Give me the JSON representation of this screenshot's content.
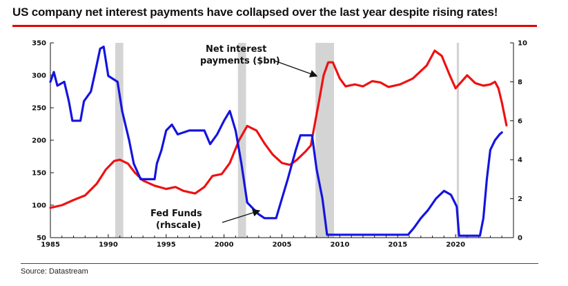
{
  "header": {
    "title": "US company net interest payments have collapsed over the last year despite rising rates!"
  },
  "footer": {
    "source": "Source: Datastream"
  },
  "colors": {
    "accent": "#e00000",
    "net_interest": "#ee1111",
    "fed_funds": "#1414e0",
    "recession": "#d4d4d4"
  },
  "chart_data": {
    "type": "line",
    "title": "US company net interest payments have collapsed over the last year despite rising rates!",
    "xlim": [
      1985,
      2025
    ],
    "x_ticks": [
      1985,
      1990,
      1995,
      2000,
      2005,
      2010,
      2015,
      2020
    ],
    "y_left": {
      "ylim": [
        50,
        350
      ],
      "ticks": [
        50,
        100,
        150,
        200,
        250,
        300,
        350
      ]
    },
    "y_right": {
      "ylim": [
        0,
        10
      ],
      "ticks": [
        0,
        2,
        4,
        6,
        8,
        10
      ]
    },
    "grid": false,
    "recessions": [
      [
        1990.6,
        1991.3
      ],
      [
        2001.2,
        2001.9
      ],
      [
        2007.9,
        2009.5
      ],
      [
        2020.1,
        2020.3
      ]
    ],
    "annotations": [
      {
        "lines": [
          "Net interest",
          "payments ($bn)"
        ]
      },
      {
        "lines": [
          "Fed Funds",
          "(rhscale)"
        ]
      }
    ],
    "series": [
      {
        "name": "Net interest payments ($bn)",
        "axis": "left",
        "points": [
          [
            1985,
            96
          ],
          [
            1986,
            100
          ],
          [
            1987,
            108
          ],
          [
            1988,
            115
          ],
          [
            1989,
            133
          ],
          [
            1989.8,
            155
          ],
          [
            1990.5,
            168
          ],
          [
            1991,
            170
          ],
          [
            1991.7,
            164
          ],
          [
            1992.3,
            150
          ],
          [
            1993,
            138
          ],
          [
            1994,
            130
          ],
          [
            1995,
            125
          ],
          [
            1995.8,
            128
          ],
          [
            1996.5,
            122
          ],
          [
            1997.5,
            118
          ],
          [
            1998.3,
            128
          ],
          [
            1999,
            145
          ],
          [
            1999.8,
            148
          ],
          [
            2000.5,
            165
          ],
          [
            2001.3,
            200
          ],
          [
            2002,
            222
          ],
          [
            2002.8,
            215
          ],
          [
            2003.5,
            195
          ],
          [
            2004.2,
            178
          ],
          [
            2005,
            165
          ],
          [
            2005.7,
            162
          ],
          [
            2006.3,
            170
          ],
          [
            2007,
            182
          ],
          [
            2007.5,
            192
          ],
          [
            2008.2,
            260
          ],
          [
            2008.6,
            300
          ],
          [
            2009,
            320
          ],
          [
            2009.4,
            320
          ],
          [
            2010,
            295
          ],
          [
            2010.5,
            283
          ],
          [
            2011.3,
            286
          ],
          [
            2012,
            283
          ],
          [
            2012.8,
            291
          ],
          [
            2013.5,
            289
          ],
          [
            2014.2,
            282
          ],
          [
            2015.2,
            286
          ],
          [
            2016.3,
            295
          ],
          [
            2017.5,
            315
          ],
          [
            2018.2,
            338
          ],
          [
            2018.8,
            330
          ],
          [
            2019.5,
            300
          ],
          [
            2020,
            280
          ],
          [
            2020.5,
            290
          ],
          [
            2021,
            300
          ],
          [
            2021.7,
            288
          ],
          [
            2022.4,
            284
          ],
          [
            2023,
            286
          ],
          [
            2023.4,
            290
          ],
          [
            2023.7,
            280
          ],
          [
            2024,
            258
          ],
          [
            2024.4,
            223
          ]
        ]
      },
      {
        "name": "Fed Funds",
        "axis": "right",
        "points": [
          [
            1985,
            8.0
          ],
          [
            1985.3,
            8.5
          ],
          [
            1985.6,
            7.8
          ],
          [
            1986.2,
            8.0
          ],
          [
            1986.6,
            7.0
          ],
          [
            1986.9,
            6.0
          ],
          [
            1987.6,
            6.0
          ],
          [
            1987.9,
            7.0
          ],
          [
            1988.5,
            7.5
          ],
          [
            1988.8,
            8.3
          ],
          [
            1989.3,
            9.7
          ],
          [
            1989.6,
            9.8
          ],
          [
            1990,
            8.3
          ],
          [
            1990.8,
            8.0
          ],
          [
            1991.2,
            6.5
          ],
          [
            1991.8,
            5.0
          ],
          [
            1992.2,
            3.8
          ],
          [
            1992.8,
            3.0
          ],
          [
            1994,
            3.0
          ],
          [
            1994.2,
            3.8
          ],
          [
            1994.6,
            4.5
          ],
          [
            1995,
            5.5
          ],
          [
            1995.5,
            5.8
          ],
          [
            1996,
            5.3
          ],
          [
            1997,
            5.5
          ],
          [
            1998.3,
            5.5
          ],
          [
            1998.8,
            4.8
          ],
          [
            1999.4,
            5.3
          ],
          [
            2000,
            6.0
          ],
          [
            2000.5,
            6.5
          ],
          [
            2001,
            5.5
          ],
          [
            2001.5,
            3.8
          ],
          [
            2002,
            1.8
          ],
          [
            2003,
            1.2
          ],
          [
            2003.5,
            1.0
          ],
          [
            2004.5,
            1.0
          ],
          [
            2004.9,
            1.8
          ],
          [
            2005.5,
            3.0
          ],
          [
            2006.2,
            4.5
          ],
          [
            2006.6,
            5.25
          ],
          [
            2007.6,
            5.25
          ],
          [
            2008,
            3.5
          ],
          [
            2008.5,
            2.0
          ],
          [
            2008.9,
            0.15
          ],
          [
            2015.9,
            0.15
          ],
          [
            2016.4,
            0.5
          ],
          [
            2017,
            1.0
          ],
          [
            2017.6,
            1.4
          ],
          [
            2018.3,
            2.0
          ],
          [
            2019,
            2.4
          ],
          [
            2019.6,
            2.2
          ],
          [
            2020.1,
            1.6
          ],
          [
            2020.3,
            0.1
          ],
          [
            2022.1,
            0.1
          ],
          [
            2022.4,
            1.0
          ],
          [
            2022.7,
            3.0
          ],
          [
            2023,
            4.5
          ],
          [
            2023.4,
            5.0
          ],
          [
            2023.8,
            5.3
          ],
          [
            2024,
            5.4
          ]
        ]
      }
    ]
  }
}
